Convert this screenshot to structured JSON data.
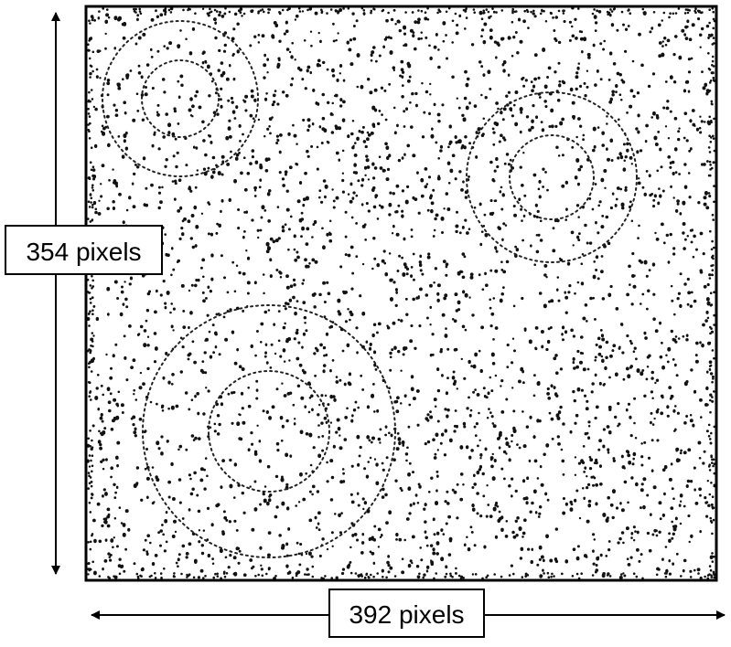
{
  "labels": {
    "height": "354 pixels",
    "width": "392 pixels"
  },
  "colors": {
    "dots": "#111111",
    "frame": "#000000",
    "circles": "#222222",
    "background": "#ffffff"
  },
  "figure": {
    "content": "random dot field with concentric dotted circles",
    "circle_groups": 3,
    "circles_per_group": 2
  }
}
